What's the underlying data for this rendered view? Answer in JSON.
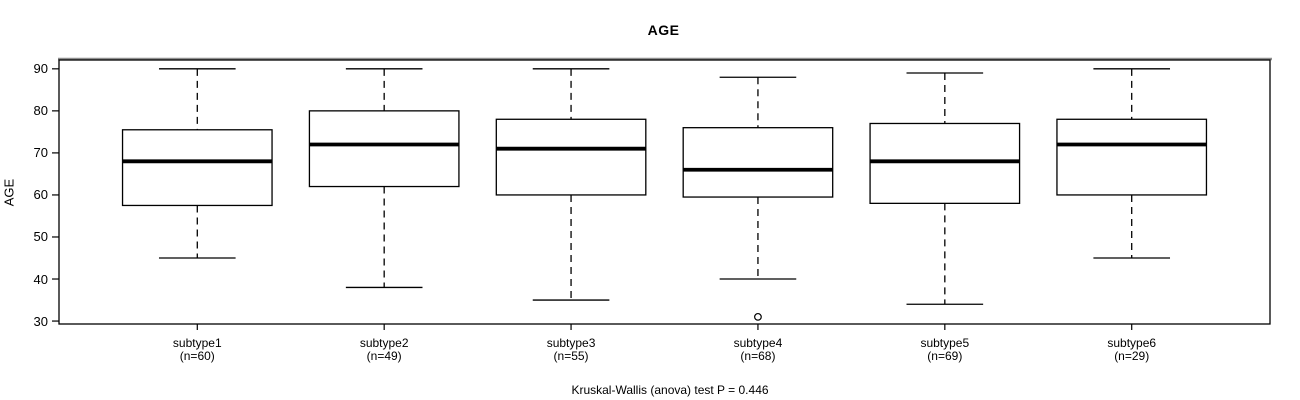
{
  "chart_data": {
    "type": "boxplot",
    "title": "AGE",
    "ylabel": "AGE",
    "caption": "Kruskal-Wallis (anova) test P = 0.446",
    "y_ticks": [
      30,
      40,
      50,
      60,
      70,
      80,
      90
    ],
    "ylim": [
      29.3,
      92.1
    ],
    "grid": false,
    "groups": [
      {
        "label": "subtype1",
        "n_label": "(n=60)",
        "whisker_low": 45,
        "q1": 57.5,
        "median": 68,
        "q3": 75.5,
        "whisker_high": 90,
        "outliers": []
      },
      {
        "label": "subtype2",
        "n_label": "(n=49)",
        "whisker_low": 38,
        "q1": 62,
        "median": 72,
        "q3": 80,
        "whisker_high": 90,
        "outliers": []
      },
      {
        "label": "subtype3",
        "n_label": "(n=55)",
        "whisker_low": 35,
        "q1": 60,
        "median": 71,
        "q3": 78,
        "whisker_high": 90,
        "outliers": []
      },
      {
        "label": "subtype4",
        "n_label": "(n=68)",
        "whisker_low": 40,
        "q1": 59.5,
        "median": 66,
        "q3": 76,
        "whisker_high": 88,
        "outliers": [
          31
        ]
      },
      {
        "label": "subtype5",
        "n_label": "(n=69)",
        "whisker_low": 34,
        "q1": 58,
        "median": 68,
        "q3": 77,
        "whisker_high": 89,
        "outliers": []
      },
      {
        "label": "subtype6",
        "n_label": "(n=29)",
        "whisker_low": 45,
        "q1": 60,
        "median": 72,
        "q3": 78,
        "whisker_high": 90,
        "outliers": []
      }
    ],
    "colors": {
      "stroke": "#000000",
      "frame_top_shadow": "#8f8f8f",
      "box_fill": "#ffffff",
      "background": "#ffffff"
    }
  }
}
